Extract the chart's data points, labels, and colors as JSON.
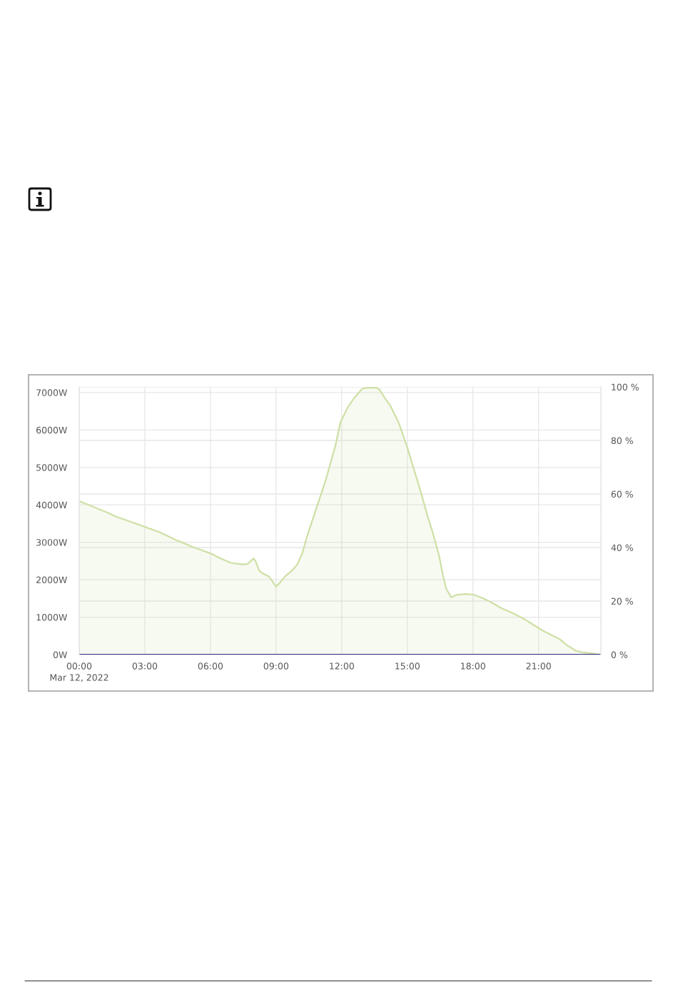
{
  "chart_data": {
    "type": "area",
    "x": [
      0,
      0.4,
      0.84,
      1.27,
      1.71,
      2.25,
      3.01,
      3.67,
      4.43,
      5.3,
      6.06,
      6.39,
      6.93,
      7.48,
      7.69,
      7.97,
      8.07,
      8.24,
      8.45,
      8.67,
      8.84,
      9.0,
      9.16,
      9.43,
      9.76,
      9.98,
      10.2,
      10.41,
      10.74,
      11.28,
      11.72,
      11.94,
      12.26,
      12.59,
      12.92,
      13.13,
      13.57,
      13.73,
      13.95,
      14.22,
      14.6,
      14.98,
      15.31,
      15.64,
      15.91,
      16.18,
      16.45,
      16.62,
      16.78,
      17.0,
      17.27,
      17.71,
      18.03,
      18.47,
      18.79,
      19.34,
      19.88,
      20.32,
      20.75,
      21.19,
      21.95,
      22.28,
      22.71,
      23.04,
      23.48,
      23.8
    ],
    "series": [
      {
        "color": "#cde0a5",
        "values": [
          4100,
          4010,
          3900,
          3800,
          3680,
          3570,
          3410,
          3270,
          3060,
          2850,
          2690,
          2590,
          2450,
          2410,
          2420,
          2570,
          2490,
          2230,
          2150,
          2090,
          1950,
          1820,
          1910,
          2100,
          2260,
          2420,
          2710,
          3150,
          3730,
          4680,
          5600,
          6200,
          6590,
          6870,
          7090,
          7130,
          7130,
          7080,
          6870,
          6650,
          6200,
          5570,
          4930,
          4300,
          3730,
          3220,
          2650,
          2140,
          1760,
          1530,
          1600,
          1620,
          1600,
          1500,
          1410,
          1230,
          1090,
          960,
          800,
          640,
          420,
          260,
          100,
          60,
          30,
          0
        ]
      },
      {
        "type": "line",
        "color": "#2b2a78",
        "x": [
          0,
          23.8
        ],
        "values": [
          0,
          0
        ]
      }
    ],
    "xlim": [
      0,
      23.85
    ],
    "xticks": [
      {
        "value": 0,
        "label": "00:00\nMar 12, 2022"
      },
      {
        "value": 3,
        "label": "03:00"
      },
      {
        "value": 6,
        "label": "06:00"
      },
      {
        "value": 9,
        "label": "09:00"
      },
      {
        "value": 12,
        "label": "12:00"
      },
      {
        "value": 15,
        "label": "15:00"
      },
      {
        "value": 18,
        "label": "18:00"
      },
      {
        "value": 21,
        "label": "21:00"
      }
    ],
    "ylim": [
      0,
      7150
    ],
    "yticks": [
      {
        "value": 0,
        "label": "0W"
      },
      {
        "value": 1000,
        "label": "1000W"
      },
      {
        "value": 2000,
        "label": "2000W"
      },
      {
        "value": 3000,
        "label": "3000W"
      },
      {
        "value": 4000,
        "label": "4000W"
      },
      {
        "value": 5000,
        "label": "5000W"
      },
      {
        "value": 6000,
        "label": "6000W"
      },
      {
        "value": 7000,
        "label": "7000W"
      }
    ],
    "y2lim": [
      0,
      100
    ],
    "y2ticks": [
      {
        "value": 0,
        "label": "0 %"
      },
      {
        "value": 20,
        "label": "20 %"
      },
      {
        "value": 40,
        "label": "40 %"
      },
      {
        "value": 60,
        "label": "60 %"
      },
      {
        "value": 80,
        "label": "80 %"
      },
      {
        "value": 100,
        "label": "100 %"
      }
    ],
    "grid": true
  }
}
